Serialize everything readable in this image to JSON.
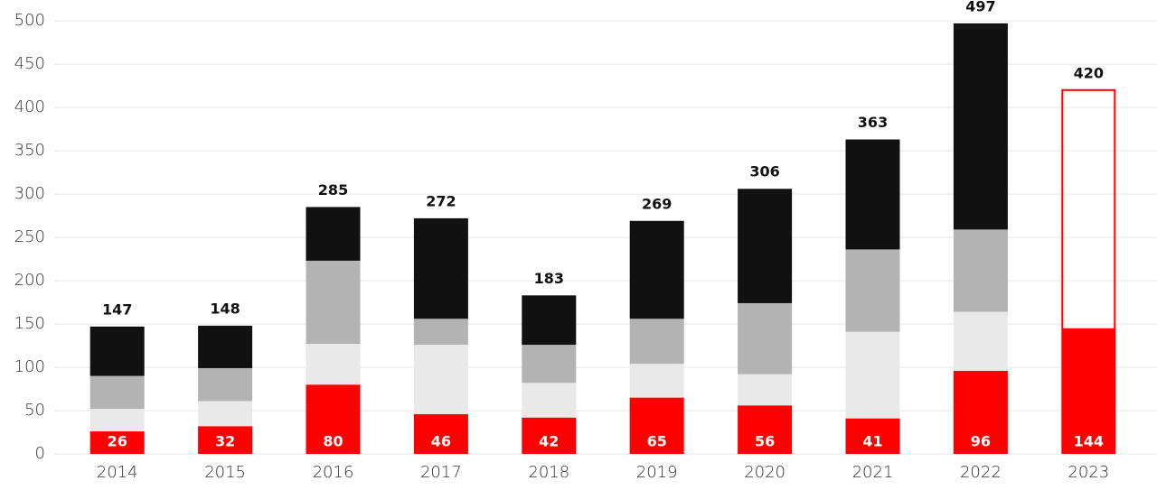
{
  "chart_data": {
    "type": "stacked_bar",
    "categories": [
      "2014",
      "2015",
      "2016",
      "2017",
      "2018",
      "2019",
      "2020",
      "2021",
      "2022",
      "2023"
    ],
    "series": [
      {
        "color": "#ff0000",
        "values": [
          26,
          32,
          80,
          46,
          42,
          65,
          56,
          41,
          96,
          144
        ]
      },
      {
        "color": "#e9e9e9",
        "values": [
          26,
          29,
          47,
          80,
          40,
          39,
          36,
          100,
          68,
          null
        ]
      },
      {
        "color": "#b3b3b3",
        "values": [
          38,
          38,
          96,
          30,
          44,
          52,
          82,
          95,
          95,
          null
        ]
      },
      {
        "color": "#111111",
        "values": [
          57,
          49,
          62,
          116,
          57,
          113,
          132,
          127,
          238,
          null
        ]
      },
      {
        "color": "#ff0000",
        "style": "outline",
        "values": [
          null,
          null,
          null,
          null,
          null,
          null,
          null,
          null,
          null,
          276
        ]
      }
    ],
    "totals": [
      147,
      148,
      285,
      272,
      183,
      269,
      306,
      363,
      497,
      420
    ],
    "ylim": [
      0,
      500
    ],
    "yticks": [
      0,
      50,
      100,
      150,
      200,
      250,
      300,
      350,
      400,
      450,
      500
    ],
    "grid": true
  }
}
